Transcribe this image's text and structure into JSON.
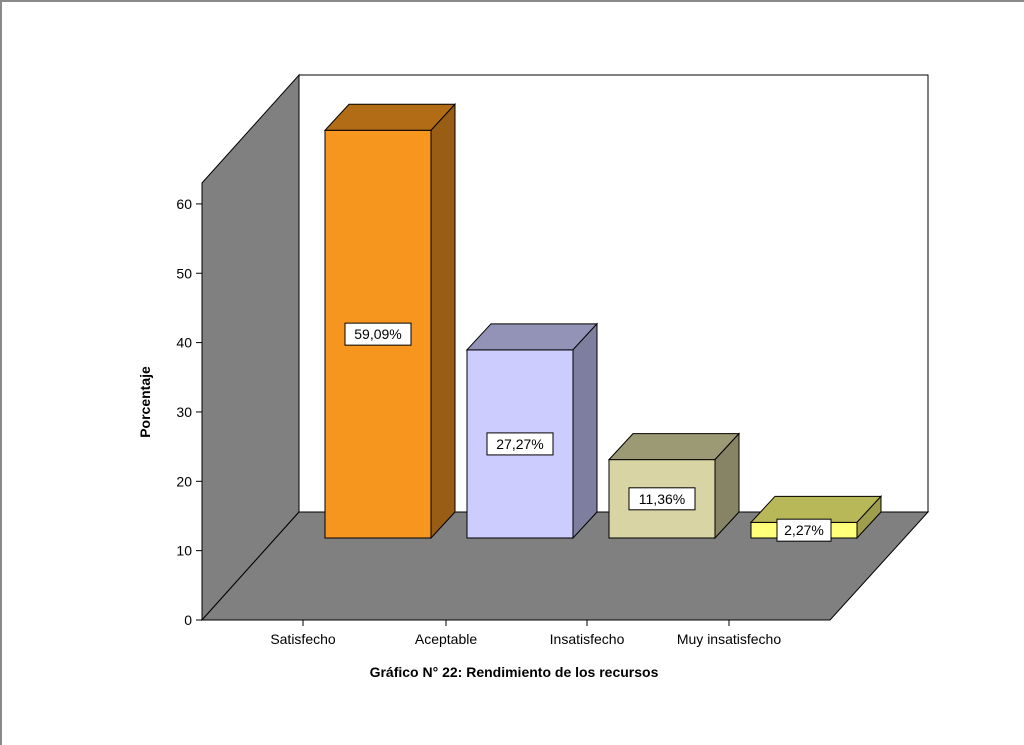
{
  "chart_data": {
    "type": "bar",
    "style": "3d",
    "categories": [
      "Satisfecho",
      "Aceptable",
      "Insatisfecho",
      "Muy insatisfecho"
    ],
    "values": [
      59.09,
      27.27,
      11.36,
      2.27
    ],
    "data_labels": [
      "59,09%",
      "27,27%",
      "11,36%",
      "2,27%"
    ],
    "ylabel": "Porcentaje",
    "xlabel": "Gráfico N° 22: Rendimiento de los recursos",
    "yticks": [
      0,
      10,
      20,
      30,
      40,
      50,
      60
    ],
    "ylim": [
      0,
      70
    ],
    "grid": false,
    "legend": "none",
    "colors": {
      "bars": [
        "#f7961e",
        "#ccccff",
        "#d9d4a3",
        "#ffff7a"
      ],
      "walls": "#808080",
      "back_wall": "#ffffff"
    }
  }
}
